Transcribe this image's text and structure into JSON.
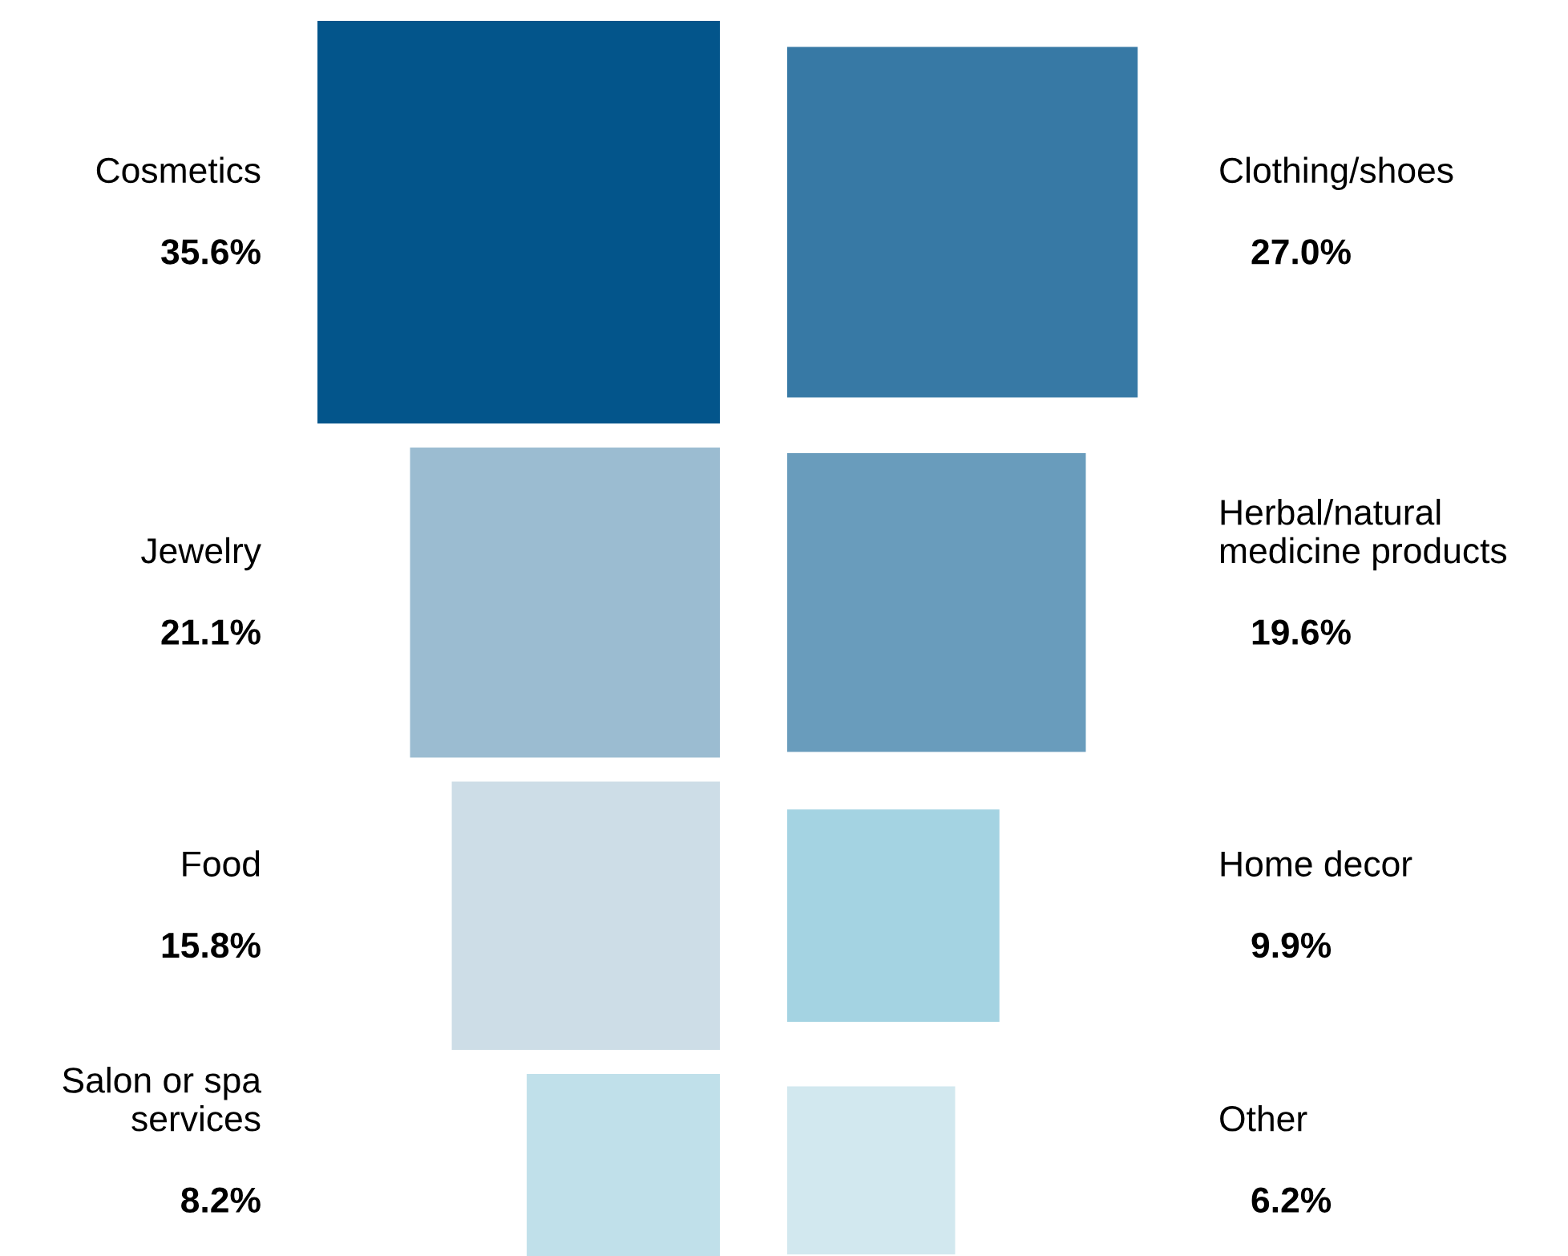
{
  "chart_data": {
    "type": "other",
    "categories": [
      "Cosmetics",
      "Clothing/shoes",
      "Jewelry",
      "Herbal/natural\nmedicine products",
      "Food",
      "Home decor",
      "Salon or spa\nservices",
      "Other"
    ],
    "values": [
      35.6,
      27.0,
      21.1,
      19.6,
      15.8,
      9.9,
      8.2,
      6.2
    ],
    "value_labels": [
      "35.6%",
      "27.0%",
      "21.1%",
      "19.6%",
      "15.8%",
      "9.9%",
      "8.2%",
      "6.2%"
    ],
    "colors": [
      "#03558b",
      "#3779a5",
      "#9bbcd1",
      "#699cbc",
      "#cddde7",
      "#a4d3e2",
      "#c0e0ea",
      "#d2e8ef"
    ]
  }
}
